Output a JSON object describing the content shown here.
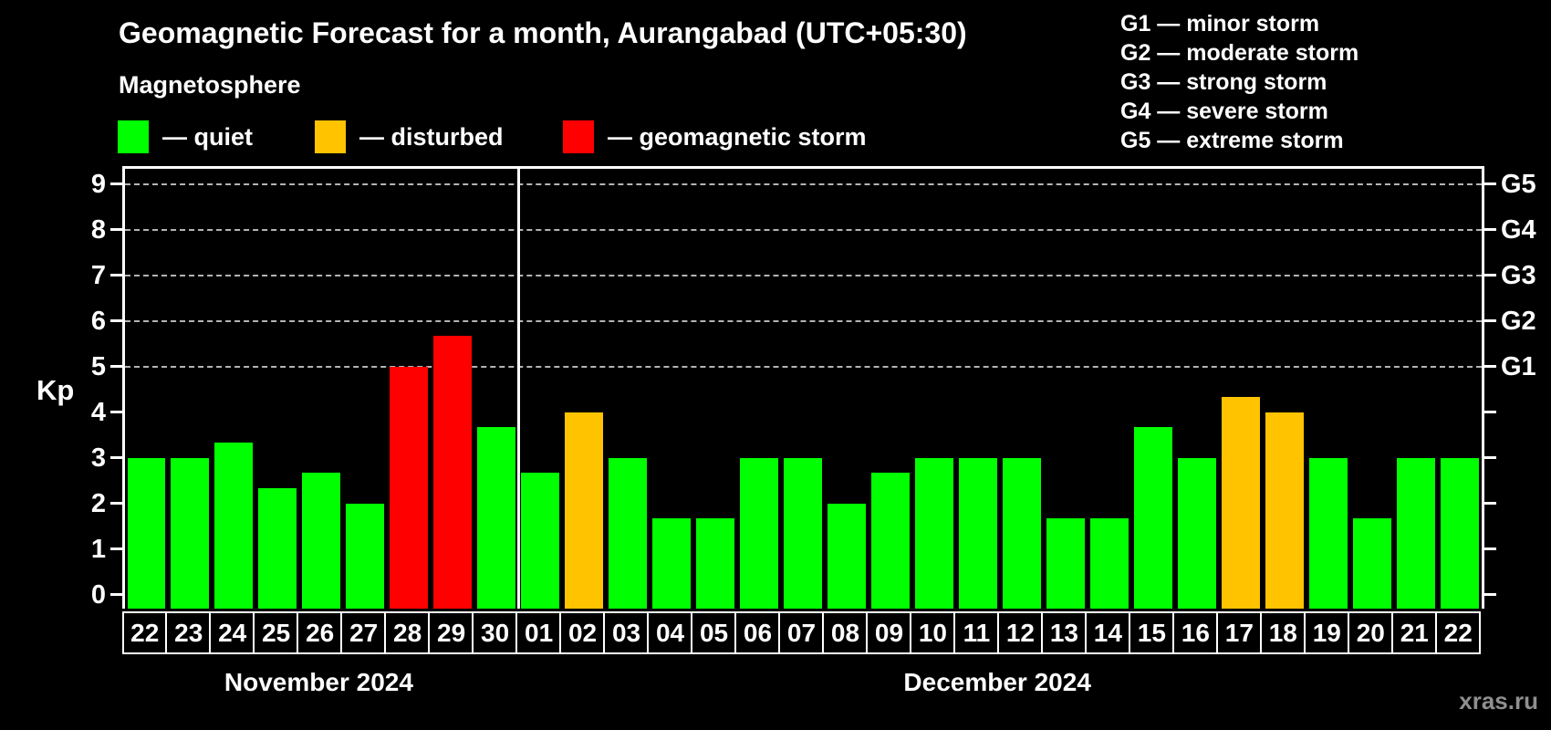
{
  "title": "Geomagnetic Forecast for a month, Aurangabad (UTC+05:30)",
  "subtitle": "Magnetosphere",
  "watermark": "xras.ru",
  "legend": {
    "items": [
      {
        "label": "— quiet",
        "status": "quiet",
        "color": "#00ff00"
      },
      {
        "label": "— disturbed",
        "status": "disturbed",
        "color": "#ffc300"
      },
      {
        "label": "— geomagnetic storm",
        "status": "storm",
        "color": "#ff0000"
      }
    ],
    "positions_x": [
      129,
      345,
      617
    ]
  },
  "storm_scale": {
    "lines": [
      "G1 — minor storm",
      "G2 — moderate storm",
      "G3 — strong storm",
      "G4 — severe storm",
      "G5 — extreme storm"
    ]
  },
  "chart_data": {
    "type": "bar",
    "title": "Geomagnetic Forecast for a month, Aurangabad (UTC+05:30)",
    "ylabel": "Kp",
    "ylim": [
      -0.3,
      9.4
    ],
    "y_ticks": [
      0,
      1,
      2,
      3,
      4,
      5,
      6,
      7,
      8,
      9
    ],
    "gridlines_kp": [
      5,
      6,
      7,
      8,
      9
    ],
    "grid_style": "dashed horizontal, right-axis storm levels",
    "right_axis_labels": [
      {
        "label": "G1",
        "kp": 5
      },
      {
        "label": "G2",
        "kp": 6
      },
      {
        "label": "G3",
        "kp": 7
      },
      {
        "label": "G4",
        "kp": 8
      },
      {
        "label": "G5",
        "kp": 9
      }
    ],
    "colors": {
      "quiet": "#00ff00",
      "disturbed": "#ffc300",
      "storm": "#ff0000"
    },
    "months": [
      {
        "label": "November 2024",
        "days": [
          {
            "day": "22",
            "kp": 3.0,
            "status": "quiet"
          },
          {
            "day": "23",
            "kp": 3.0,
            "status": "quiet"
          },
          {
            "day": "24",
            "kp": 3.33,
            "status": "quiet"
          },
          {
            "day": "25",
            "kp": 2.33,
            "status": "quiet"
          },
          {
            "day": "26",
            "kp": 2.67,
            "status": "quiet"
          },
          {
            "day": "27",
            "kp": 2.0,
            "status": "quiet"
          },
          {
            "day": "28",
            "kp": 5.0,
            "status": "storm"
          },
          {
            "day": "29",
            "kp": 5.67,
            "status": "storm"
          },
          {
            "day": "30",
            "kp": 3.67,
            "status": "quiet"
          }
        ]
      },
      {
        "label": "December 2024",
        "days": [
          {
            "day": "01",
            "kp": 2.67,
            "status": "quiet"
          },
          {
            "day": "02",
            "kp": 4.0,
            "status": "disturbed"
          },
          {
            "day": "03",
            "kp": 3.0,
            "status": "quiet"
          },
          {
            "day": "04",
            "kp": 1.67,
            "status": "quiet"
          },
          {
            "day": "05",
            "kp": 1.67,
            "status": "quiet"
          },
          {
            "day": "06",
            "kp": 3.0,
            "status": "quiet"
          },
          {
            "day": "07",
            "kp": 3.0,
            "status": "quiet"
          },
          {
            "day": "08",
            "kp": 2.0,
            "status": "quiet"
          },
          {
            "day": "09",
            "kp": 2.67,
            "status": "quiet"
          },
          {
            "day": "10",
            "kp": 3.0,
            "status": "quiet"
          },
          {
            "day": "11",
            "kp": 3.0,
            "status": "quiet"
          },
          {
            "day": "12",
            "kp": 3.0,
            "status": "quiet"
          },
          {
            "day": "13",
            "kp": 1.67,
            "status": "quiet"
          },
          {
            "day": "14",
            "kp": 1.67,
            "status": "quiet"
          },
          {
            "day": "15",
            "kp": 3.67,
            "status": "quiet"
          },
          {
            "day": "16",
            "kp": 3.0,
            "status": "quiet"
          },
          {
            "day": "17",
            "kp": 4.33,
            "status": "disturbed"
          },
          {
            "day": "18",
            "kp": 4.0,
            "status": "disturbed"
          },
          {
            "day": "19",
            "kp": 3.0,
            "status": "quiet"
          },
          {
            "day": "20",
            "kp": 1.67,
            "status": "quiet"
          },
          {
            "day": "21",
            "kp": 3.0,
            "status": "quiet"
          },
          {
            "day": "22",
            "kp": 3.0,
            "status": "quiet"
          }
        ]
      }
    ]
  }
}
